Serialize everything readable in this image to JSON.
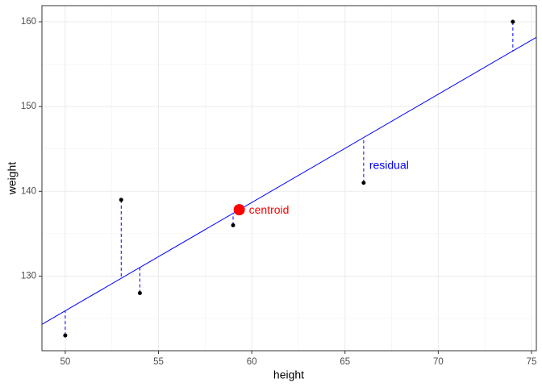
{
  "chart_data": {
    "type": "scatter",
    "x_label": "height",
    "y_label": "weight",
    "x": [
      50,
      53,
      54,
      59,
      66,
      74
    ],
    "values": [
      123,
      139,
      128,
      136,
      141,
      160
    ],
    "color": "#000000",
    "fit": {
      "intercept": 62.06,
      "slope": 1.277,
      "color": "#0000ff"
    },
    "centroid": {
      "x": 59.33,
      "y": 137.83,
      "label": "centroid",
      "color": "#ff0000"
    },
    "annotation": {
      "text": "residual",
      "x": 66.3,
      "y": 143,
      "color": "#0000ff"
    },
    "xlim": [
      48.75,
      75.26
    ],
    "ylim": [
      121.2,
      161.9
    ],
    "xticks": [
      50,
      55,
      60,
      65,
      70,
      75
    ],
    "yticks": [
      130,
      140,
      150,
      160
    ],
    "grid": true
  }
}
